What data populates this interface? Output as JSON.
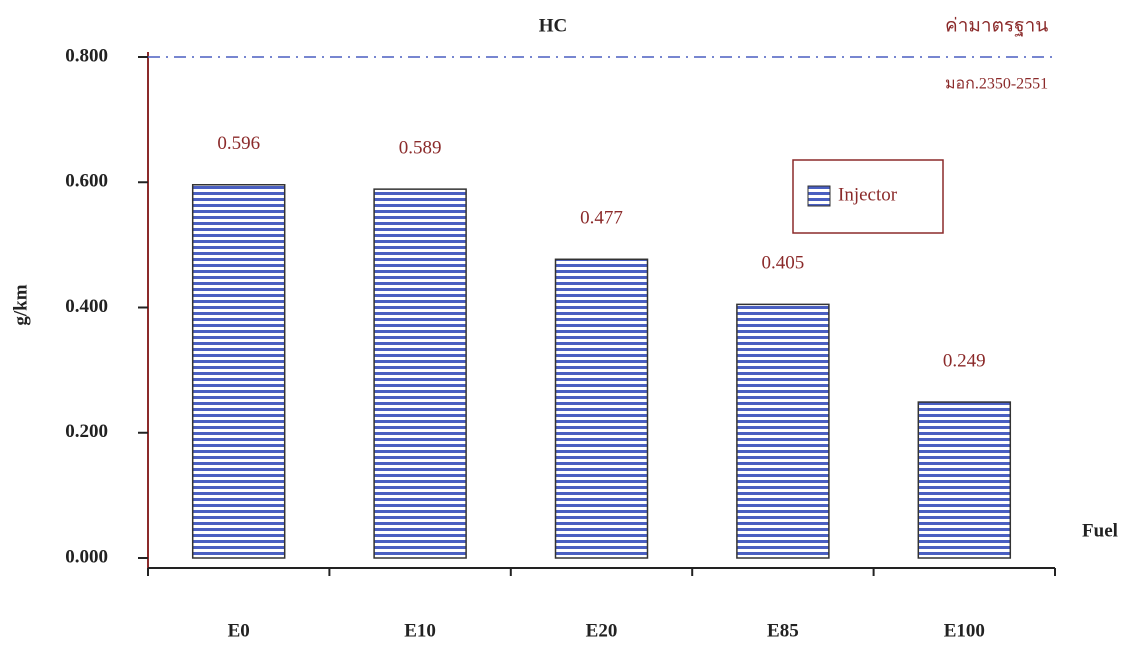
{
  "chart_data": {
    "type": "bar",
    "title": "HC",
    "y_label": "g/km",
    "x_label": "Fuel",
    "categories": [
      "E0",
      "E10",
      "E20",
      "E85",
      "E100"
    ],
    "series": [
      {
        "name": "Injector",
        "color": "#4a5fc1",
        "values": [
          0.596,
          0.589,
          0.477,
          0.405,
          0.249
        ],
        "value_labels": [
          "0.596",
          "0.589",
          "0.477",
          "0.405",
          "0.249"
        ]
      }
    ],
    "ylim": [
      0,
      0.8
    ],
    "yticks": [
      {
        "value": 0,
        "label": "0.000"
      },
      {
        "value": 0.2,
        "label": "0.200"
      },
      {
        "value": 0.4,
        "label": "0.400"
      },
      {
        "value": 0.6,
        "label": "0.600"
      },
      {
        "value": 0.8,
        "label": "0.800"
      }
    ],
    "reference_line": {
      "value": 0.8,
      "label": "ค่ามาตรฐาน",
      "sublabel": "มอก.2350-2551",
      "color": "#4a5fc1"
    },
    "legend": "right"
  }
}
